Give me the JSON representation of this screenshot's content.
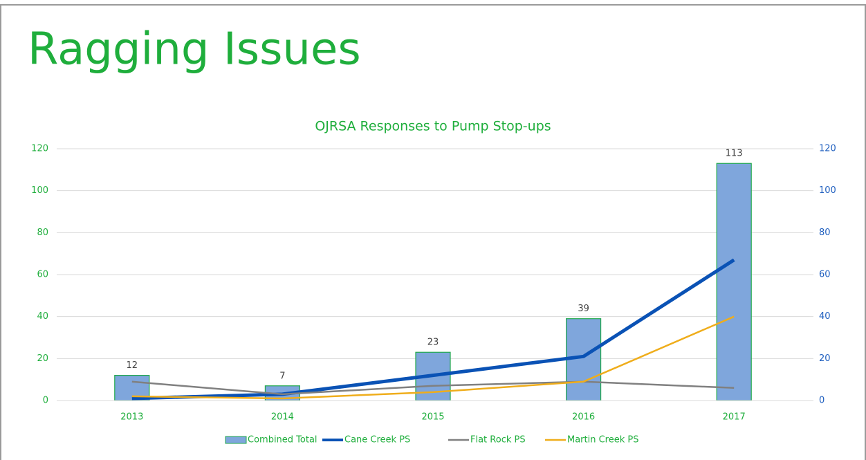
{
  "slide_title": "Ragging Issues",
  "chart_data": {
    "type": "bar",
    "title": "OJRSA Responses to Pump Stop-ups",
    "categories": [
      "2013",
      "2014",
      "2015",
      "2016",
      "2017"
    ],
    "series": [
      {
        "name": "Combined Total",
        "type": "bar",
        "color": "#7fa6dc",
        "edge_color": "#1fa84a",
        "values": [
          12,
          7,
          23,
          39,
          113
        ]
      },
      {
        "name": "Cane Creek PS",
        "type": "line",
        "axis": "y2",
        "color": "#0a52b5",
        "values": [
          1,
          3,
          12,
          21,
          67
        ]
      },
      {
        "name": "Flat Rock PS",
        "type": "line",
        "axis": "y2",
        "color": "#808080",
        "values": [
          9,
          3,
          7,
          9,
          6
        ]
      },
      {
        "name": "Martin Creek PS",
        "type": "line",
        "axis": "y2",
        "color": "#efad1b",
        "values": [
          2,
          1,
          4,
          9,
          40
        ]
      }
    ],
    "ylim": [
      0,
      120
    ],
    "yticks": [
      0,
      20,
      40,
      60,
      80,
      100,
      120
    ],
    "y2lim": [
      0,
      120
    ],
    "y2ticks": [
      0,
      20,
      40,
      60,
      80,
      100,
      120
    ],
    "grid": true,
    "legend": "bottom"
  }
}
